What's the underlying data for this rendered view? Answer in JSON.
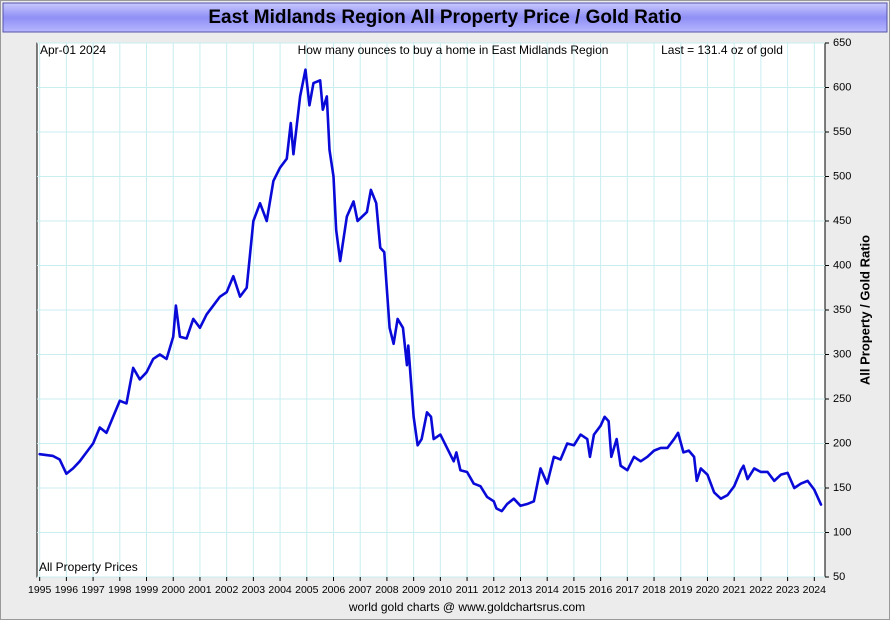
{
  "chart_data": {
    "type": "line",
    "title": "East Midlands Region All Property Price / Gold Ratio",
    "date_label": "Apr-01  2024",
    "subtitle": "How many ounces to buy a home in East Midlands Region",
    "last_label": "Last = 131.4 oz of gold",
    "y_label": "All Property / Gold Ratio",
    "footer": "world gold charts @ www.goldchartsrus.com",
    "grid": true,
    "xlim": [
      1994.9,
      2024.4
    ],
    "ylim": [
      50,
      650
    ],
    "xticks": [
      1995,
      1996,
      1997,
      1998,
      1999,
      2000,
      2001,
      2002,
      2003,
      2004,
      2005,
      2006,
      2007,
      2008,
      2009,
      2010,
      2011,
      2012,
      2013,
      2014,
      2015,
      2016,
      2017,
      2018,
      2019,
      2020,
      2021,
      2022,
      2023,
      2024
    ],
    "yticks": [
      50,
      100,
      150,
      200,
      250,
      300,
      350,
      400,
      450,
      500,
      550,
      600,
      650
    ],
    "x": [
      1995.0,
      1995.25,
      1995.5,
      1995.75,
      1996.0,
      1996.25,
      1996.5,
      1996.75,
      1997.0,
      1997.25,
      1997.5,
      1997.75,
      1998.0,
      1998.25,
      1998.5,
      1998.75,
      1999.0,
      1999.25,
      1999.5,
      1999.75,
      2000.0,
      2000.1,
      2000.25,
      2000.5,
      2000.75,
      2001.0,
      2001.25,
      2001.5,
      2001.75,
      2002.0,
      2002.25,
      2002.5,
      2002.75,
      2003.0,
      2003.25,
      2003.5,
      2003.75,
      2004.0,
      2004.25,
      2004.4,
      2004.5,
      2004.75,
      2004.95,
      2005.1,
      2005.25,
      2005.5,
      2005.6,
      2005.75,
      2005.85,
      2006.0,
      2006.1,
      2006.25,
      2006.5,
      2006.75,
      2006.9,
      2007.25,
      2007.4,
      2007.6,
      2007.75,
      2007.9,
      2008.1,
      2008.25,
      2008.4,
      2008.6,
      2008.75,
      2008.8,
      2009.0,
      2009.15,
      2009.3,
      2009.5,
      2009.65,
      2009.75,
      2010.0,
      2010.25,
      2010.5,
      2010.6,
      2010.75,
      2011.0,
      2011.25,
      2011.5,
      2011.75,
      2012.0,
      2012.1,
      2012.3,
      2012.5,
      2012.75,
      2013.0,
      2013.25,
      2013.5,
      2013.75,
      2014.0,
      2014.25,
      2014.5,
      2014.75,
      2015.0,
      2015.25,
      2015.5,
      2015.6,
      2015.75,
      2016.0,
      2016.15,
      2016.3,
      2016.4,
      2016.6,
      2016.75,
      2017.0,
      2017.25,
      2017.5,
      2017.75,
      2018.0,
      2018.25,
      2018.5,
      2018.75,
      2018.9,
      2019.1,
      2019.3,
      2019.5,
      2019.6,
      2019.75,
      2020.0,
      2020.25,
      2020.5,
      2020.75,
      2021.0,
      2021.25,
      2021.35,
      2021.5,
      2021.75,
      2022.0,
      2022.25,
      2022.5,
      2022.75,
      2023.0,
      2023.25,
      2023.5,
      2023.75,
      2024.0,
      2024.25
    ],
    "series": [
      {
        "name": "All Property Prices",
        "color": "#0a0ad8",
        "values": [
          188,
          187,
          186,
          182,
          166,
          172,
          180,
          190,
          200,
          218,
          212,
          230,
          248,
          245,
          285,
          272,
          280,
          295,
          300,
          295,
          320,
          355,
          320,
          318,
          340,
          330,
          345,
          355,
          365,
          370,
          388,
          365,
          375,
          450,
          470,
          450,
          495,
          510,
          520,
          560,
          525,
          590,
          620,
          580,
          605,
          608,
          575,
          590,
          530,
          500,
          440,
          405,
          455,
          472,
          450,
          460,
          485,
          470,
          420,
          415,
          330,
          312,
          340,
          330,
          288,
          310,
          230,
          198,
          205,
          235,
          230,
          205,
          210,
          195,
          180,
          190,
          170,
          168,
          155,
          152,
          140,
          135,
          127,
          124,
          132,
          138,
          130,
          132,
          135,
          172,
          155,
          185,
          182,
          200,
          198,
          210,
          205,
          185,
          210,
          220,
          230,
          225,
          185,
          205,
          175,
          170,
          185,
          180,
          185,
          192,
          195,
          195,
          205,
          212,
          190,
          192,
          185,
          158,
          172,
          165,
          145,
          138,
          142,
          152,
          170,
          175,
          160,
          172,
          168,
          168,
          158,
          165,
          167,
          150,
          155,
          158,
          148,
          131.4
        ]
      }
    ]
  }
}
